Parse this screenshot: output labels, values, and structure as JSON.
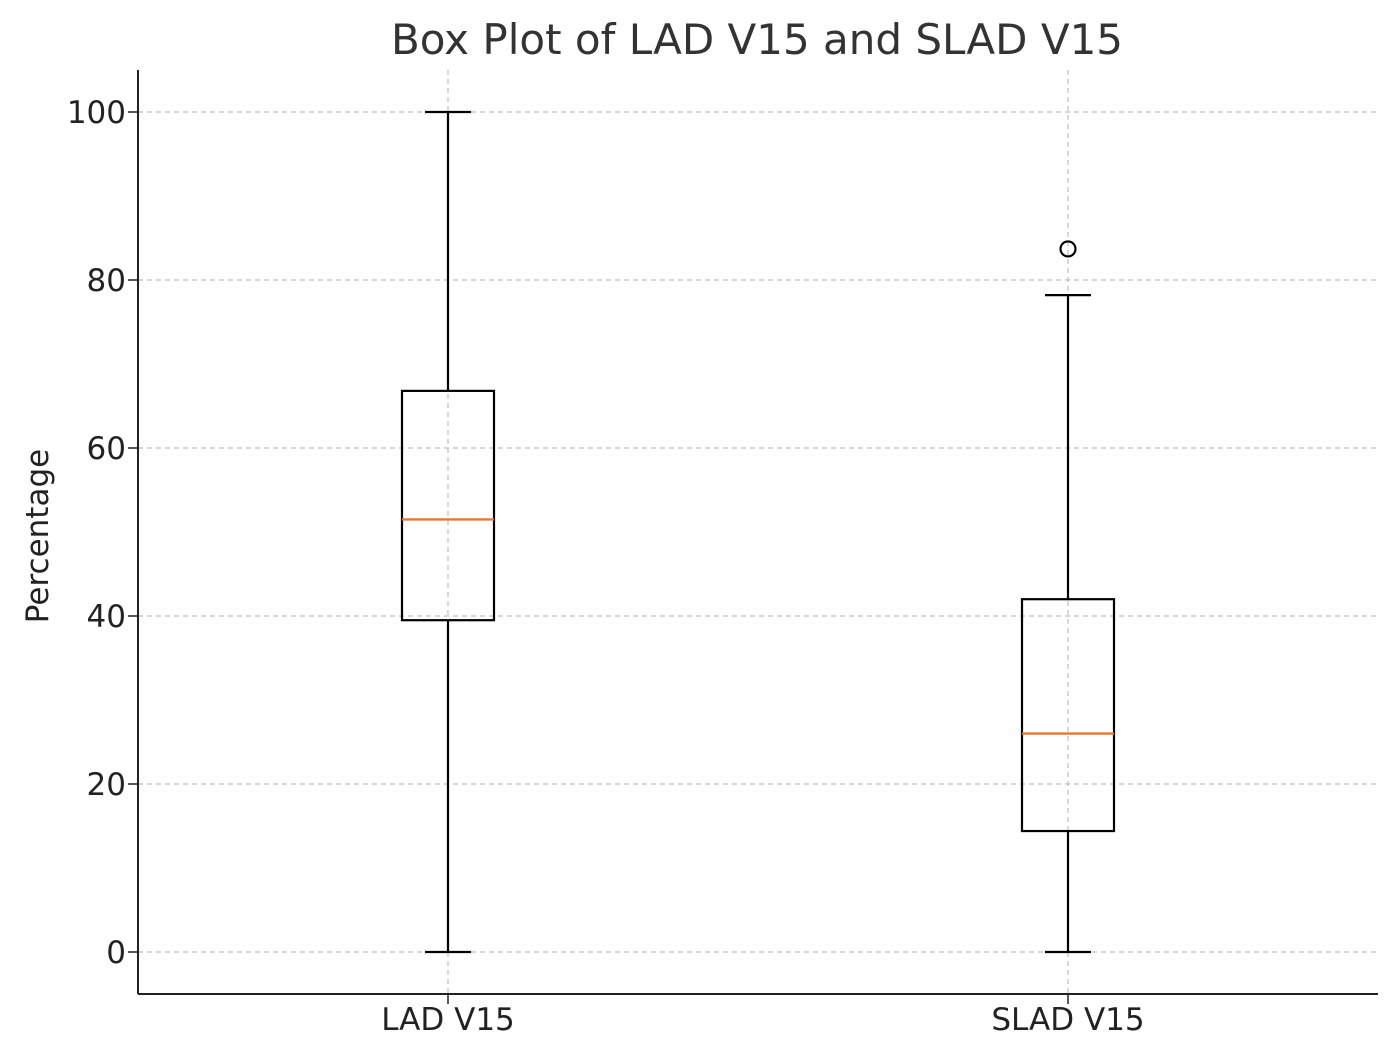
{
  "chart_data": {
    "type": "box",
    "title": "Box Plot of LAD V15 and SLAD V15",
    "xlabel": "",
    "ylabel": "Percentage",
    "ylim": [
      -5,
      105
    ],
    "yticks": [
      0,
      20,
      40,
      60,
      80,
      100
    ],
    "grid": true,
    "categories": [
      "LAD V15",
      "SLAD V15"
    ],
    "boxes": [
      {
        "category": "LAD V15",
        "whisker_low": 0,
        "q1": 39.5,
        "median": 51.5,
        "q3": 66.8,
        "whisker_high": 100,
        "outliers": []
      },
      {
        "category": "SLAD V15",
        "whisker_low": 0,
        "q1": 14.4,
        "median": 26,
        "q3": 42,
        "whisker_high": 78.2,
        "outliers": [
          83.7
        ]
      }
    ]
  },
  "colors": {
    "box": "#000000",
    "median": "#e8772e",
    "grid": "#b0b0b0",
    "axis": "#222222"
  }
}
